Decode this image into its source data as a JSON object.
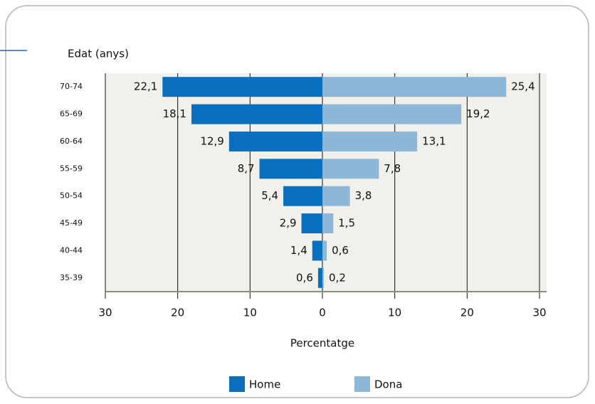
{
  "chart_data": {
    "type": "pyramid",
    "title": "Edat (anys)",
    "x_label": "Percentatge",
    "categories": [
      "70-74",
      "65-69",
      "60-64",
      "55-59",
      "50-54",
      "45-49",
      "40-44",
      "35-39"
    ],
    "series": [
      {
        "name": "Home",
        "color": "#0a6fbd",
        "side": "left",
        "values": [
          22.1,
          18.1,
          12.9,
          8.7,
          5.4,
          2.9,
          1.4,
          0.6
        ],
        "value_labels": [
          "22,1",
          "18,1",
          "12,9",
          "8,7",
          "5,4",
          "2,9",
          "1,4",
          "0,6"
        ]
      },
      {
        "name": "Dona",
        "color": "#8db7d7",
        "side": "right",
        "values": [
          25.4,
          19.2,
          13.1,
          7.8,
          3.8,
          1.5,
          0.6,
          0.2
        ],
        "value_labels": [
          "25,4",
          "19,2",
          "13,1",
          "7,8",
          "3,8",
          "1,5",
          "0,6",
          "0,2"
        ]
      }
    ],
    "xlim": [
      -30,
      30
    ],
    "xticks": [
      {
        "value": -30,
        "label": "30"
      },
      {
        "value": -20,
        "label": "20"
      },
      {
        "value": -10,
        "label": "10"
      },
      0,
      10,
      20,
      30
    ],
    "grid": true
  }
}
